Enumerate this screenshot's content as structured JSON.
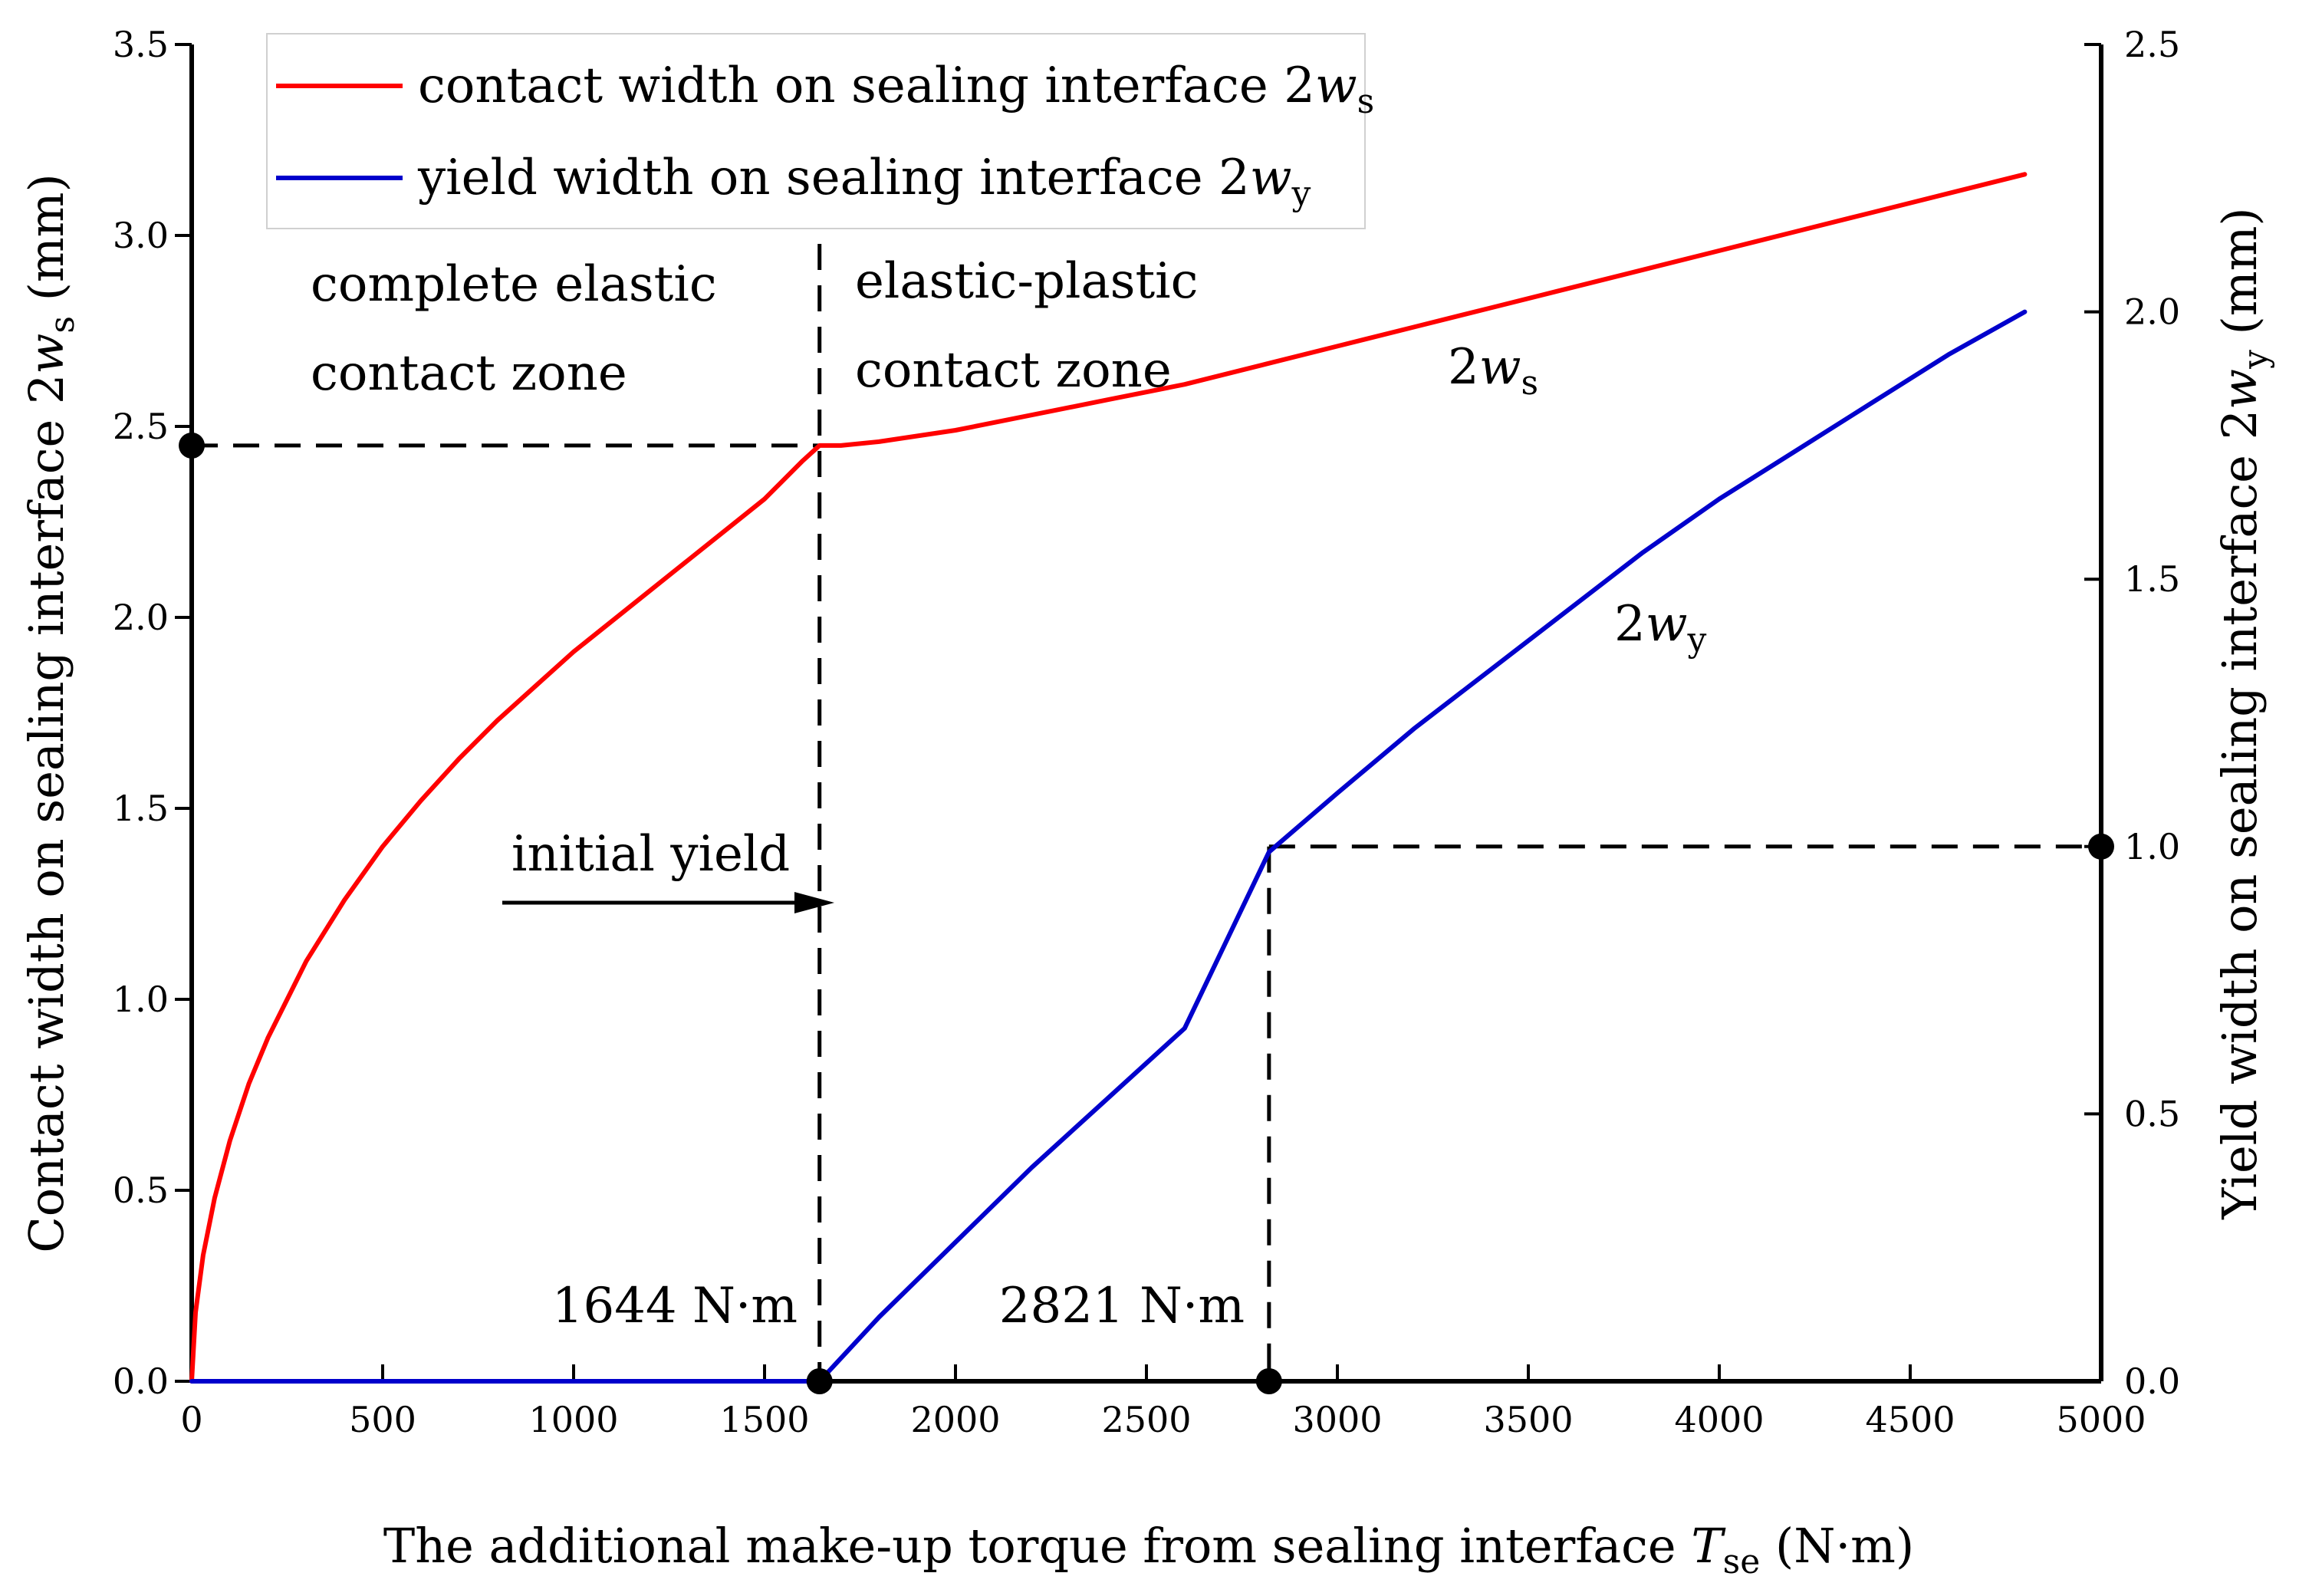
{
  "chart_data": {
    "type": "line",
    "xlabel": "The additional make-up torque  from sealing interface T_se (N·m)",
    "xlabel_parts": {
      "pre": "The additional make-up torque  from sealing interface ",
      "var": "T",
      "sub": "se",
      "post": " (N·m)"
    },
    "ylabel_left": "Contact width on sealing interface 2w_s (mm)",
    "ylabel_left_parts": {
      "pre": "Contact width on sealing interface 2",
      "var": "w",
      "sub": "s",
      "post": " (mm)"
    },
    "ylabel_right": "Yield width on sealing interface 2w_y (mm)",
    "ylabel_right_parts": {
      "pre": "Yield width on sealing interface 2",
      "var": "w",
      "sub": "y",
      "post": " (mm)"
    },
    "xlim": [
      0,
      5000
    ],
    "ylim_left": [
      0,
      3.5
    ],
    "ylim_right": [
      0,
      2.5
    ],
    "x_ticks": [
      "0",
      "500",
      "1000",
      "1500",
      "2000",
      "2500",
      "3000",
      "3500",
      "4000",
      "4500",
      "5000"
    ],
    "y_left_ticks": [
      "0.0",
      "0.5",
      "1.0",
      "1.5",
      "2.0",
      "2.5",
      "3.0",
      "3.5"
    ],
    "y_right_ticks": [
      "0.0",
      "0.5",
      "1.0",
      "1.5",
      "2.0",
      "2.5"
    ],
    "grid": false,
    "legend_position": "top-left",
    "series": [
      {
        "name": "contact width on sealing interface 2w_s",
        "name_parts": {
          "pre": "contact width on sealing interface 2",
          "var": "w",
          "sub": "s"
        },
        "axis": "left",
        "color": "#ff0000",
        "x": [
          0,
          10,
          30,
          60,
          100,
          150,
          200,
          300,
          400,
          500,
          600,
          700,
          800,
          900,
          1000,
          1100,
          1200,
          1300,
          1400,
          1500,
          1600,
          1644,
          1700,
          1800,
          2000,
          2200,
          2400,
          2600,
          2800,
          3000,
          3200,
          3400,
          3600,
          3800,
          4000,
          4200,
          4400,
          4600,
          4800
        ],
        "values": [
          0,
          0.18,
          0.33,
          0.48,
          0.63,
          0.78,
          0.9,
          1.1,
          1.26,
          1.4,
          1.52,
          1.63,
          1.73,
          1.82,
          1.91,
          1.99,
          2.07,
          2.15,
          2.23,
          2.31,
          2.41,
          2.45,
          2.45,
          2.46,
          2.49,
          2.53,
          2.57,
          2.61,
          2.66,
          2.71,
          2.76,
          2.81,
          2.86,
          2.91,
          2.96,
          3.01,
          3.06,
          3.11,
          3.16
        ]
      },
      {
        "name": "yield width on sealing interface 2w_y",
        "name_parts": {
          "pre": "yield width on sealing interface 2",
          "var": "w",
          "sub": "y"
        },
        "axis": "right",
        "color": "#0000cc",
        "x": [
          0,
          500,
          1000,
          1500,
          1644,
          1800,
          2000,
          2200,
          2400,
          2600,
          2821,
          3000,
          3200,
          3400,
          3600,
          3800,
          4000,
          4200,
          4400,
          4600,
          4800
        ],
        "values": [
          0,
          0,
          0,
          0,
          0,
          0.12,
          0.26,
          0.4,
          0.53,
          0.66,
          0.99,
          1.1,
          1.22,
          1.33,
          1.44,
          1.55,
          1.65,
          1.74,
          1.83,
          1.92,
          2.0
        ]
      }
    ],
    "annotations": {
      "zone_elastic_line1": "complete elastic",
      "zone_elastic_line2": "contact zone",
      "zone_plastic_line1": "elastic-plastic",
      "zone_plastic_line2": "contact zone",
      "initial_yield": "initial yield",
      "torque_1644": "1644 N·m",
      "torque_2821": "2821 N·m",
      "label_ws": {
        "pre": "2",
        "var": "w",
        "sub": "s"
      },
      "label_wy": {
        "pre": "2",
        "var": "w",
        "sub": "y"
      }
    },
    "markers": {
      "initial_yield_x": 1644,
      "initial_yield_contact_width": 2.45,
      "yield_width_one_x": 2821,
      "yield_width_one_value": 1.0
    }
  }
}
